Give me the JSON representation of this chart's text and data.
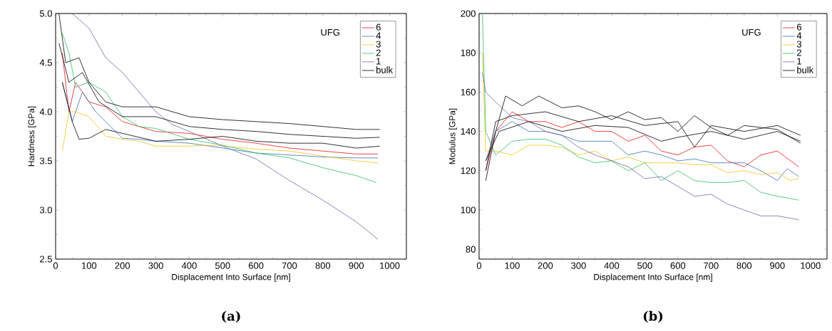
{
  "chart_data": [
    {
      "type": "line",
      "title": "(a)",
      "xlabel": "Displacement Into Surface [nm]",
      "ylabel": "Hardness [GPa]",
      "legend_title": "UFG",
      "legend": "top right",
      "xlim": [
        0,
        1050
      ],
      "ylim": [
        2.5,
        5.0
      ],
      "xticks": [
        0,
        100,
        200,
        300,
        400,
        500,
        600,
        700,
        800,
        900,
        1000
      ],
      "yticks": [
        {
          "value": 2.5,
          "label": "2.5"
        },
        {
          "value": 3,
          "label": "3.0"
        },
        {
          "value": 3.5,
          "label": "3.5"
        },
        {
          "value": 4,
          "label": "4.0"
        },
        {
          "value": 4.5,
          "label": "4.5"
        },
        {
          "value": 5,
          "label": "5.0"
        }
      ],
      "series": [
        {
          "name": "6",
          "color": "#e8141a",
          "x": [
            20,
            40,
            60,
            80,
            100,
            150,
            200,
            250,
            300,
            400,
            500,
            600,
            700,
            800,
            900,
            965
          ],
          "values": [
            4.6,
            4.0,
            4.3,
            4.2,
            4.1,
            4.05,
            3.9,
            3.85,
            3.8,
            3.78,
            3.72,
            3.68,
            3.63,
            3.6,
            3.57,
            3.57
          ]
        },
        {
          "name": "4",
          "color": "#3a6fb5",
          "x": [
            20,
            50,
            80,
            120,
            150,
            200,
            250,
            300,
            400,
            500,
            600,
            700,
            800,
            900,
            965
          ],
          "values": [
            4.3,
            3.9,
            4.2,
            4.0,
            3.9,
            3.73,
            3.72,
            3.7,
            3.68,
            3.63,
            3.58,
            3.56,
            3.54,
            3.53,
            3.53
          ]
        },
        {
          "name": "3",
          "color": "#f5c21b",
          "x": [
            20,
            40,
            60,
            100,
            150,
            200,
            250,
            300,
            400,
            450,
            500,
            600,
            700,
            800,
            900,
            965
          ],
          "values": [
            3.6,
            4.0,
            4.0,
            3.95,
            3.75,
            3.72,
            3.7,
            3.65,
            3.65,
            3.66,
            3.65,
            3.62,
            3.6,
            3.55,
            3.5,
            3.48
          ]
        },
        {
          "name": "2",
          "color": "#2fbf5f",
          "x": [
            20,
            40,
            60,
            100,
            150,
            200,
            250,
            300,
            400,
            500,
            600,
            700,
            800,
            900,
            960
          ],
          "values": [
            4.8,
            4.6,
            4.25,
            4.3,
            4.2,
            3.95,
            3.85,
            3.83,
            3.72,
            3.66,
            3.58,
            3.53,
            3.43,
            3.35,
            3.28
          ]
        },
        {
          "name": "1",
          "color": "#6a6aaa",
          "x": [
            50,
            100,
            150,
            200,
            250,
            300,
            350,
            400,
            500,
            600,
            700,
            800,
            900,
            965
          ],
          "values": [
            5.0,
            4.85,
            4.55,
            4.4,
            4.2,
            4.0,
            3.87,
            3.8,
            3.65,
            3.52,
            3.3,
            3.1,
            2.88,
            2.7
          ]
        },
        {
          "name": "bulk",
          "color": "#000000",
          "x": [
            10,
            30,
            70,
            100,
            150,
            200,
            300,
            400,
            500,
            600,
            700,
            800,
            900,
            970
          ],
          "values": [
            5.0,
            4.5,
            4.55,
            4.3,
            4.1,
            4.05,
            4.05,
            3.95,
            3.92,
            3.9,
            3.88,
            3.85,
            3.82,
            3.82
          ]
        },
        {
          "color": "#000000",
          "x": [
            10,
            40,
            80,
            130,
            200,
            300,
            400,
            500,
            600,
            700,
            800,
            900,
            970
          ],
          "values": [
            4.7,
            4.3,
            4.4,
            4.1,
            3.95,
            3.95,
            3.85,
            3.82,
            3.8,
            3.77,
            3.75,
            3.73,
            3.74
          ]
        },
        {
          "color": "#000000",
          "x": [
            20,
            50,
            70,
            100,
            150,
            200,
            300,
            400,
            500,
            600,
            700,
            800,
            900,
            970
          ],
          "values": [
            4.3,
            3.9,
            3.72,
            3.73,
            3.82,
            3.78,
            3.7,
            3.72,
            3.75,
            3.7,
            3.68,
            3.68,
            3.63,
            3.65
          ]
        }
      ]
    },
    {
      "type": "line",
      "title": "(b)",
      "xlabel": "Displacement Into Surface [nm]",
      "ylabel": "Modulus [GPa]",
      "legend_title": "UFG",
      "legend": "top right",
      "xlim": [
        0,
        1050
      ],
      "ylim": [
        75,
        200
      ],
      "xticks": [
        0,
        100,
        200,
        300,
        400,
        500,
        600,
        700,
        800,
        900,
        1000
      ],
      "yticks": [
        80,
        100,
        120,
        140,
        160,
        180,
        200
      ],
      "series": [
        {
          "name": "6",
          "color": "#e8141a",
          "x": [
            20,
            50,
            100,
            150,
            200,
            250,
            300,
            350,
            400,
            450,
            500,
            550,
            600,
            650,
            700,
            750,
            800,
            850,
            900,
            965
          ],
          "values": [
            120,
            140,
            150,
            145,
            145,
            142,
            145,
            140,
            140,
            135,
            138,
            130,
            128,
            132,
            133,
            125,
            122,
            128,
            130,
            122
          ]
        },
        {
          "name": "4",
          "color": "#3a6fb5",
          "x": [
            20,
            50,
            100,
            150,
            200,
            250,
            300,
            350,
            400,
            450,
            500,
            550,
            600,
            650,
            700,
            750,
            800,
            850,
            900,
            930,
            965
          ],
          "values": [
            125,
            140,
            145,
            140,
            140,
            138,
            135,
            135,
            135,
            128,
            130,
            128,
            125,
            126,
            124,
            124,
            124,
            120,
            115,
            121,
            117
          ]
        },
        {
          "name": "3",
          "color": "#f5c21b",
          "x": [
            10,
            20,
            50,
            100,
            150,
            200,
            250,
            300,
            350,
            400,
            450,
            500,
            550,
            600,
            650,
            700,
            750,
            800,
            850,
            900,
            940,
            965
          ],
          "values": [
            180,
            130,
            130,
            128,
            133,
            133,
            132,
            128,
            130,
            125,
            127,
            124,
            124,
            124,
            123,
            123,
            119,
            120,
            118,
            119,
            115,
            116
          ]
        },
        {
          "name": "2",
          "color": "#2fbf5f",
          "x": [
            10,
            20,
            50,
            100,
            150,
            200,
            250,
            300,
            350,
            400,
            450,
            500,
            550,
            600,
            650,
            700,
            750,
            800,
            850,
            900,
            965
          ],
          "values": [
            200,
            140,
            128,
            135,
            136,
            136,
            133,
            127,
            124,
            125,
            120,
            124,
            115,
            120,
            115,
            114,
            114,
            115,
            109,
            107,
            105
          ]
        },
        {
          "name": "1",
          "color": "#6a6aaa",
          "x": [
            10,
            20,
            50,
            100,
            150,
            200,
            250,
            300,
            350,
            400,
            450,
            500,
            550,
            600,
            650,
            700,
            750,
            800,
            850,
            900,
            965
          ],
          "values": [
            170,
            160,
            155,
            147,
            145,
            140,
            138,
            132,
            128,
            125,
            122,
            116,
            117,
            112,
            107,
            108,
            103,
            100,
            97,
            97,
            95
          ]
        },
        {
          "name": "bulk",
          "color": "#000000",
          "x": [
            20,
            50,
            80,
            130,
            180,
            250,
            300,
            350,
            400,
            450,
            500,
            550,
            600,
            650,
            700,
            750,
            800,
            850,
            900,
            970
          ],
          "values": [
            115,
            140,
            158,
            153,
            158,
            152,
            153,
            150,
            146,
            150,
            146,
            147,
            140,
            148,
            142,
            138,
            143,
            142,
            141,
            134
          ]
        },
        {
          "color": "#000000",
          "x": [
            20,
            50,
            100,
            200,
            300,
            400,
            500,
            600,
            650,
            700,
            800,
            900,
            970
          ],
          "values": [
            120,
            145,
            148,
            150,
            145,
            148,
            143,
            145,
            132,
            143,
            140,
            143,
            138
          ]
        },
        {
          "color": "#000000",
          "x": [
            20,
            60,
            150,
            250,
            350,
            450,
            550,
            600,
            700,
            800,
            900,
            970
          ],
          "values": [
            125,
            140,
            145,
            140,
            143,
            142,
            135,
            137,
            140,
            136,
            140,
            135
          ]
        }
      ]
    }
  ]
}
